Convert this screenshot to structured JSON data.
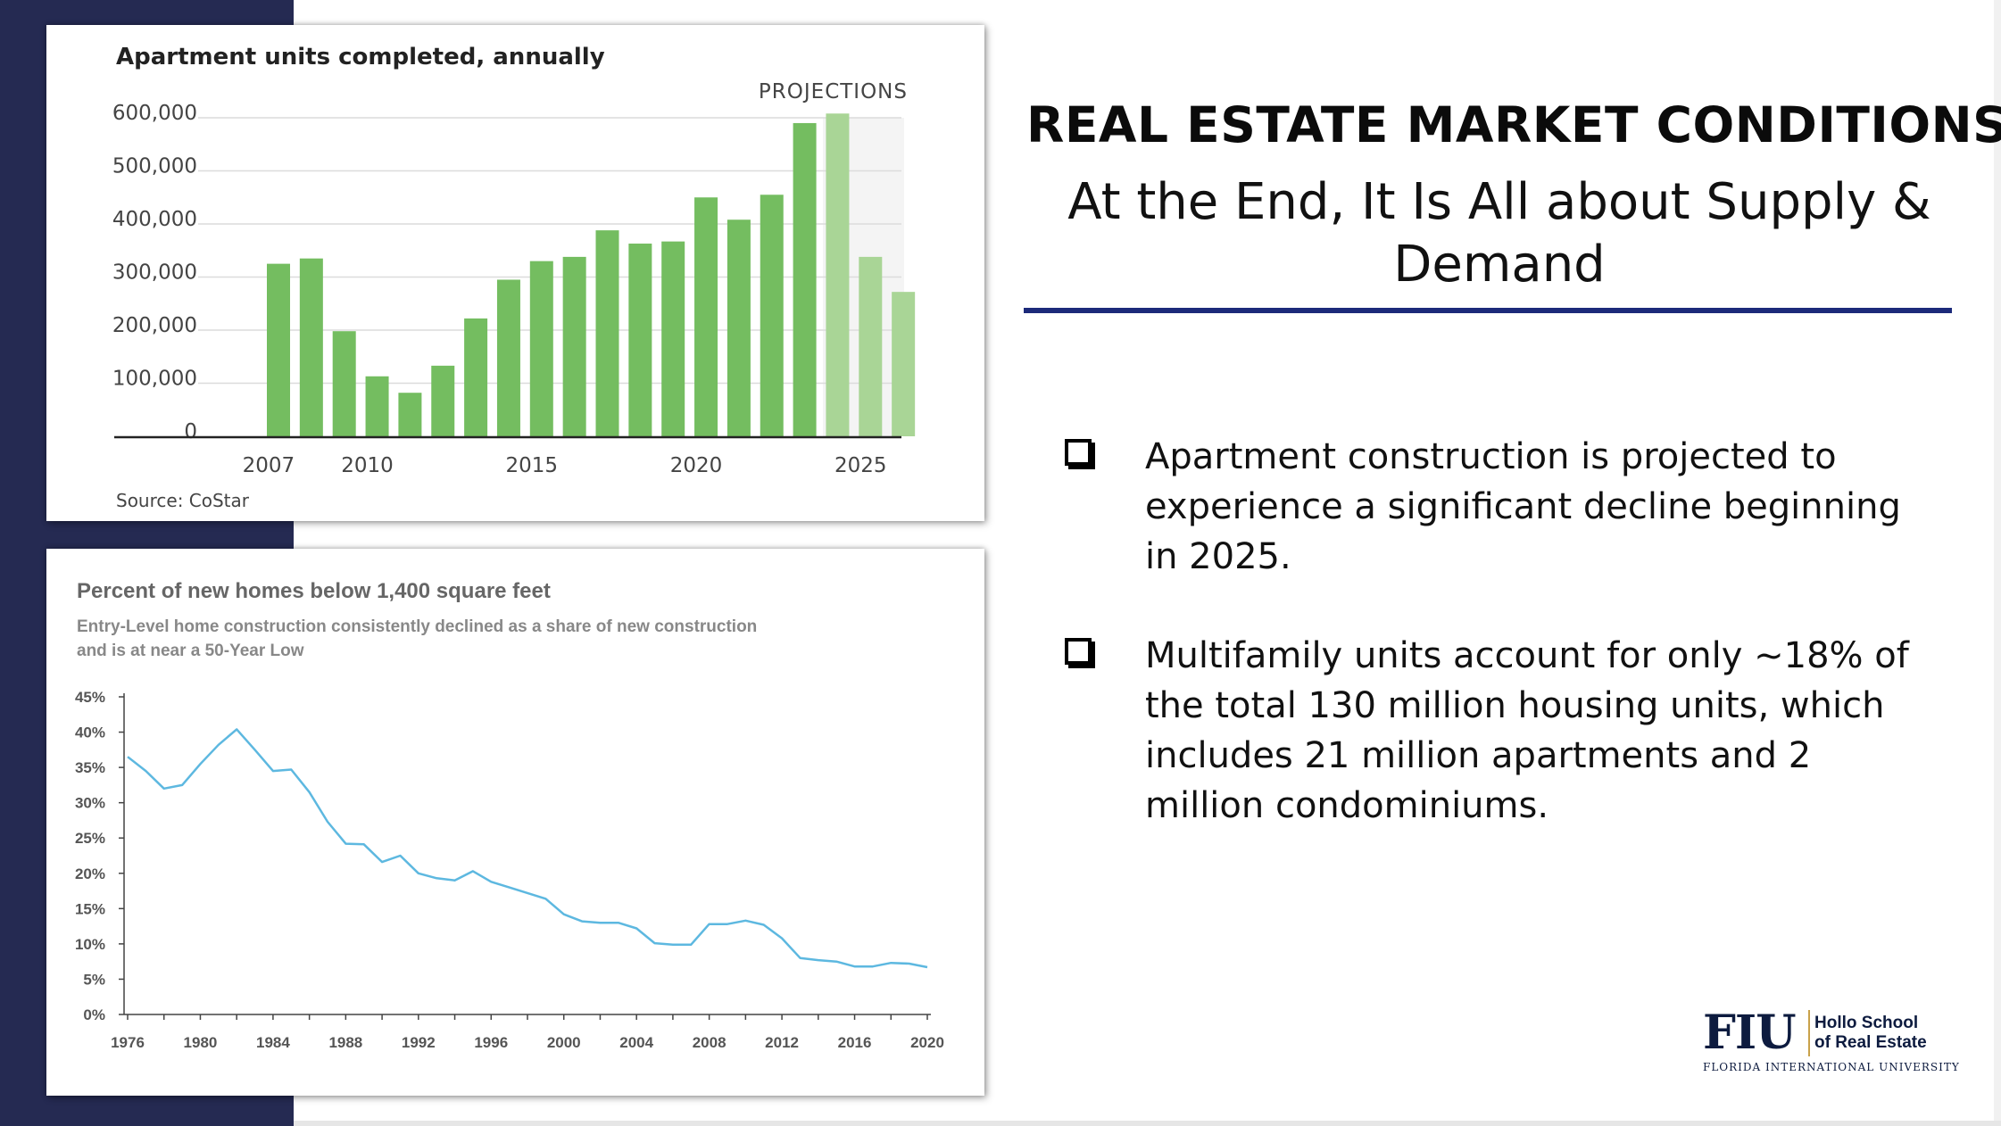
{
  "slide": {
    "title": "REAL ESTATE MARKET CONDITIONS",
    "subtitle": "At the End, It Is All about Supply & Demand",
    "bullets": [
      "Apartment construction is projected to experience a significant decline beginning in 2025.",
      "Multifamily units account for only ~18% of the total 130 million housing units, which includes 21 million apartments and 2 million condominiums."
    ],
    "logo": {
      "mark": "FIU",
      "line1": "Hollo School",
      "line2": "of Real Estate",
      "university": "FLORIDA INTERNATIONAL UNIVERSITY"
    }
  },
  "chart_data": [
    {
      "type": "bar",
      "title": "Apartment units completed, annually",
      "annotation": "PROJECTIONS",
      "source": "Source: CoStar",
      "xlabel": "",
      "ylabel": "",
      "ylim": [
        0,
        600000
      ],
      "ytick_labels": [
        "0",
        "100,000",
        "200,000",
        "300,000",
        "400,000",
        "500,000",
        "600,000"
      ],
      "xtick_labels": [
        "2007",
        "2010",
        "2015",
        "2020",
        "2025"
      ],
      "categories": [
        "2007",
        "2008",
        "2009",
        "2010",
        "2011",
        "2012",
        "2013",
        "2014",
        "2015",
        "2016",
        "2017",
        "2018",
        "2019",
        "2020",
        "2021",
        "2022",
        "2023",
        "2024",
        "2025",
        "2026"
      ],
      "values": [
        325000,
        335000,
        198000,
        113000,
        82000,
        133000,
        222000,
        295000,
        330000,
        338000,
        388000,
        363000,
        367000,
        450000,
        408000,
        455000,
        590000,
        608000,
        338000,
        272000
      ],
      "projected": [
        false,
        false,
        false,
        false,
        false,
        false,
        false,
        false,
        false,
        false,
        false,
        false,
        false,
        false,
        false,
        false,
        false,
        true,
        true,
        true
      ],
      "colors": {
        "actual": "#74bd60",
        "projected": "#a9d596",
        "projection_band": "#f4f4f4"
      },
      "grid": true,
      "legend": "none"
    },
    {
      "type": "line",
      "title": "Percent of new homes below 1,400 square feet",
      "subtitle": "Entry-Level home construction consistently declined as a share of new construction and is at near a 50-Year Low",
      "xlabel": "",
      "ylabel": "",
      "ylim": [
        0,
        45
      ],
      "ytick_labels": [
        "0%",
        "5%",
        "10%",
        "15%",
        "20%",
        "25%",
        "30%",
        "35%",
        "40%",
        "45%"
      ],
      "xtick_labels": [
        "1976",
        "1980",
        "1984",
        "1988",
        "1992",
        "1996",
        "2000",
        "2004",
        "2008",
        "2012",
        "2016",
        "2020"
      ],
      "x": [
        1976,
        1977,
        1978,
        1979,
        1980,
        1981,
        1982,
        1983,
        1984,
        1985,
        1986,
        1987,
        1988,
        1989,
        1990,
        1991,
        1992,
        1993,
        1994,
        1995,
        1996,
        1997,
        1998,
        1999,
        2000,
        2001,
        2002,
        2003,
        2004,
        2005,
        2006,
        2007,
        2008,
        2009,
        2010,
        2011,
        2012,
        2013,
        2014,
        2015,
        2016,
        2017,
        2018,
        2019,
        2020
      ],
      "y": [
        36.5,
        34.5,
        32,
        32.5,
        35.5,
        38.2,
        40.4,
        37.5,
        34.5,
        34.7,
        31.5,
        27.3,
        24.2,
        24.1,
        21.6,
        22.5,
        20,
        19.3,
        19,
        20.3,
        18.8,
        18,
        17.2,
        16.4,
        14.2,
        13.2,
        13,
        13,
        12.2,
        10.1,
        9.9,
        9.9,
        12.8,
        12.8,
        13.3,
        12.7,
        10.8,
        8,
        7.7,
        7.5,
        6.8,
        6.8,
        7.3,
        7.2,
        6.7
      ],
      "color": "#5db8e0",
      "grid": false,
      "legend": "none"
    }
  ]
}
